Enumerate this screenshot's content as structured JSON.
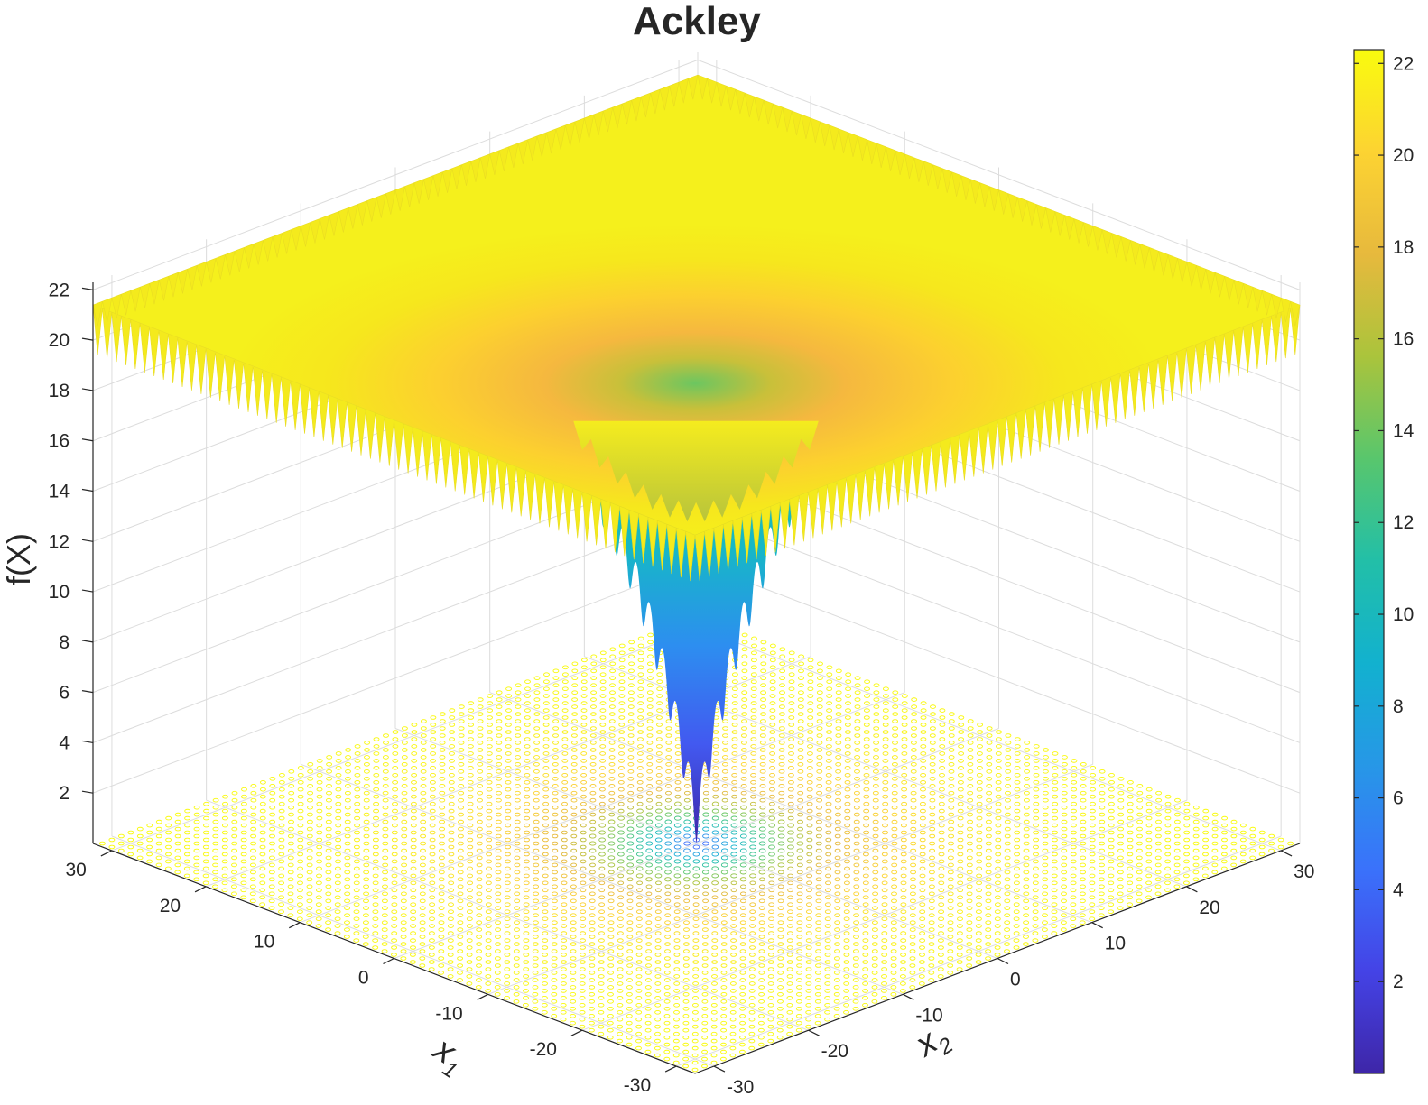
{
  "chart_data": {
    "type": "surface",
    "title": "Ackley",
    "xlabel": "x",
    "xlabel_sub": "1",
    "ylabel": "x",
    "ylabel_sub": "2",
    "zlabel": "f(X)",
    "x_range": [
      -32,
      32
    ],
    "y_range": [
      -32,
      32
    ],
    "zlim": [
      0,
      22.3
    ],
    "x_ticks": [
      30,
      20,
      10,
      0,
      -10,
      -20,
      -30
    ],
    "y_ticks": [
      30,
      20,
      10,
      0,
      -10,
      -20,
      -30
    ],
    "z_ticks": [
      2,
      4,
      6,
      8,
      10,
      12,
      14,
      16,
      18,
      20,
      22
    ],
    "colorbar_ticks": [
      2,
      4,
      6,
      8,
      10,
      12,
      14,
      16,
      18,
      20,
      22
    ],
    "colorbar_range": [
      0,
      22.3
    ],
    "colormap": "parula",
    "minimum": {
      "x": 0,
      "y": 0,
      "z": 0
    },
    "grid": true,
    "contour_projection": true,
    "colors": {
      "grid": "#dcdcdc",
      "axis": "#262626",
      "low": "#3e26a8",
      "high": "#f9fb0e"
    }
  }
}
